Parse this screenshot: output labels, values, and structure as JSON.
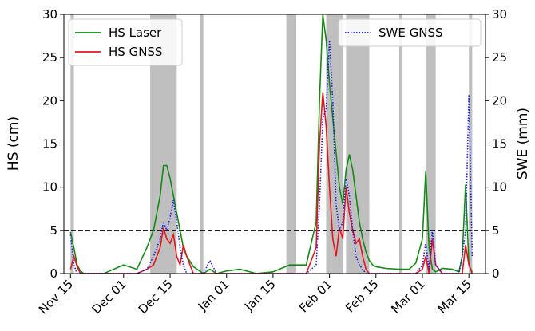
{
  "chart_data": {
    "type": "line",
    "xlabel": null,
    "ylabel": "HS (cm)",
    "y2label": "SWE (mm)",
    "x": [
      "Nov 15",
      "Nov 16",
      "Nov 17",
      "Nov 18",
      "Nov 19",
      "Nov 20",
      "Nov 22",
      "Nov 25",
      "Dec 01",
      "Dec 05",
      "Dec 08",
      "Dec 10",
      "Dec 12",
      "Dec 13",
      "Dec 14",
      "Dec 15",
      "Dec 16",
      "Dec 17",
      "Dec 18",
      "Dec 19",
      "Dec 20",
      "Dec 22",
      "Dec 25",
      "Dec 27",
      "Dec 29",
      "Jan 01",
      "Jan 05",
      "Jan 10",
      "Jan 15",
      "Jan 20",
      "Jan 22",
      "Jan 25",
      "Jan 28",
      "Jan 29",
      "Jan 30",
      "Jan 31",
      "Feb 01",
      "Feb 02",
      "Feb 03",
      "Feb 04",
      "Feb 05",
      "Feb 06",
      "Feb 07",
      "Feb 08",
      "Feb 09",
      "Feb 10",
      "Feb 11",
      "Feb 12",
      "Feb 13",
      "Feb 14",
      "Feb 15",
      "Feb 18",
      "Feb 22",
      "Feb 25",
      "Feb 27",
      "Mar 01",
      "Mar 02",
      "Mar 03",
      "Mar 04",
      "Mar 05",
      "Mar 07",
      "Mar 10",
      "Mar 12",
      "Mar 13",
      "Mar 14",
      "Mar 15",
      "Mar 16"
    ],
    "series": [
      {
        "name": "HS Laser",
        "color": "#138a13",
        "linestyle": "solid",
        "axis": "y",
        "values": [
          4.8,
          3,
          1,
          0.3,
          0,
          0,
          0,
          0,
          1.0,
          0.5,
          3,
          5,
          9,
          12.5,
          12.5,
          11,
          9,
          7,
          5,
          3,
          2,
          0.8,
          0,
          0.5,
          0,
          0.3,
          0.5,
          0,
          0.2,
          1.0,
          1.0,
          1.0,
          6,
          20,
          30,
          27,
          22,
          18,
          14,
          10,
          8,
          12,
          13.8,
          12,
          9,
          6,
          4,
          2.5,
          1.5,
          1,
          0.8,
          0.6,
          0.5,
          0.5,
          1.2,
          4,
          11.8,
          3,
          0.5,
          0.2,
          0.6,
          0.5,
          0.2,
          2,
          10.3,
          1,
          0.2
        ]
      },
      {
        "name": "HS GNSS",
        "color": "#e8141a",
        "linestyle": "solid",
        "axis": "y",
        "values": [
          0.5,
          2,
          0.8,
          0,
          0,
          0,
          0,
          0,
          0,
          0,
          0.5,
          1,
          3,
          5.3,
          4,
          3.5,
          4.5,
          2,
          1,
          3.3,
          2,
          0,
          0,
          0,
          0,
          0,
          0,
          0,
          0,
          0,
          0,
          0,
          3,
          15,
          21,
          17,
          10,
          4,
          2,
          5.3,
          4,
          10,
          7,
          5,
          3.5,
          4,
          2,
          0.5,
          0,
          0,
          0,
          0,
          0,
          0,
          0,
          0.5,
          2,
          0,
          4,
          1,
          0,
          0,
          0,
          0,
          3.3,
          1,
          0
        ]
      },
      {
        "name": "SWE GNSS",
        "color": "#1a1ae6",
        "linestyle": "dotted",
        "axis": "y2",
        "values": [
          4.5,
          1,
          0,
          0,
          0,
          0,
          0,
          0,
          0,
          0,
          0.5,
          2,
          4,
          6,
          5,
          6.5,
          8.5,
          6,
          3,
          1,
          0,
          0,
          0,
          1.5,
          0,
          0,
          0,
          0,
          0,
          0,
          0,
          0,
          1,
          8,
          18,
          19,
          27,
          20,
          8,
          5,
          6,
          11,
          9,
          5,
          2,
          1,
          0.5,
          0,
          0,
          0,
          0,
          0,
          0,
          0,
          0,
          1,
          3.5,
          0.5,
          5,
          1,
          0,
          0,
          0,
          2,
          5,
          20.7,
          2
        ]
      }
    ],
    "spans": [
      [
        "Nov 15",
        "Nov 16"
      ],
      [
        "Dec 09",
        "Dec 17"
      ],
      [
        "Dec 24",
        "Dec 25"
      ],
      [
        "Jan 19",
        "Jan 22"
      ],
      [
        "Jan 31",
        "Feb 05"
      ],
      [
        "Feb 06",
        "Feb 13"
      ],
      [
        "Feb 22",
        "Feb 23"
      ],
      [
        "Mar 02",
        "Mar 05"
      ],
      [
        "Mar 15",
        "Mar 16"
      ]
    ],
    "span_color": "#bfbfbf",
    "threshold": 5,
    "xlim": [
      "Nov 13",
      "Mar 20"
    ],
    "xticks": [
      "Nov 15",
      "Dec 01",
      "Dec 15",
      "Jan 01",
      "Jan 15",
      "Feb 01",
      "Feb 15",
      "Mar 01",
      "Mar 15"
    ],
    "ylim": [
      0,
      30
    ],
    "yticks": [
      0,
      5,
      10,
      15,
      20,
      25,
      30
    ],
    "y2lim": [
      0,
      30
    ],
    "y2ticks": [
      0,
      5,
      10,
      15,
      20,
      25,
      30
    ],
    "legend": "upper left",
    "legend2": "upper right"
  }
}
